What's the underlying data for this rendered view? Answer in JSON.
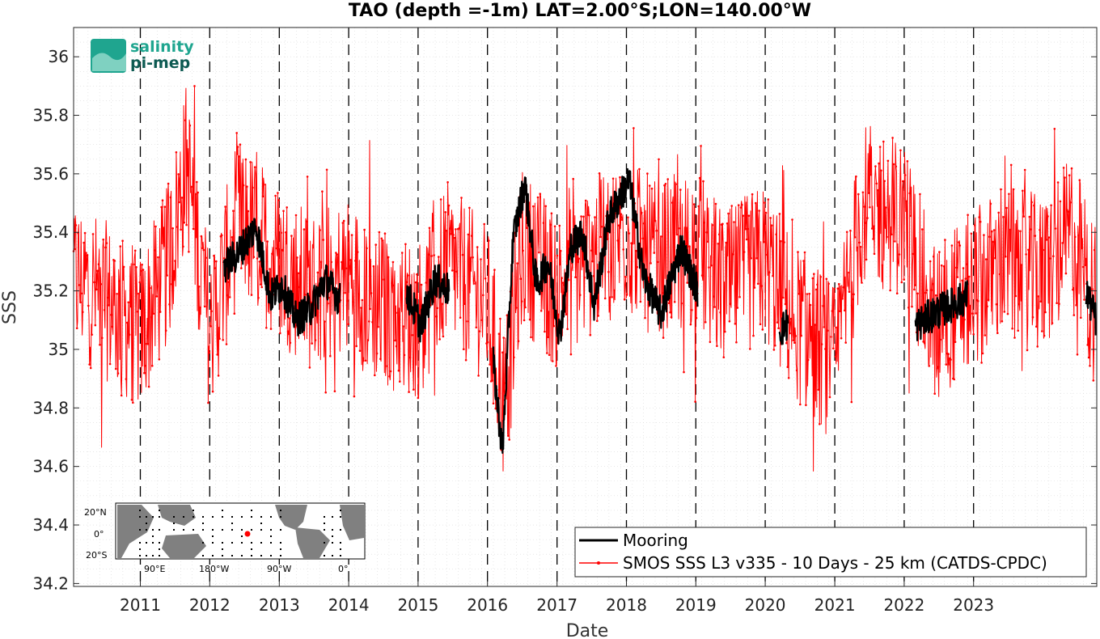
{
  "chart_data": {
    "type": "line",
    "title": "TAO (depth =-1m) LAT=2.00°S;LON=140.00°W",
    "xlabel": "Date",
    "ylabel": "SSS",
    "xlim": [
      "2010-01-15",
      "2024-10-10"
    ],
    "ylim": [
      34.19,
      36.1
    ],
    "xticks": [
      "2011",
      "2012",
      "2013",
      "2014",
      "2015",
      "2016",
      "2017",
      "2018",
      "2019",
      "2020",
      "2021",
      "2022",
      "2023"
    ],
    "yticks": [
      "34.2",
      "34.4",
      "34.6",
      "34.8",
      "35",
      "35.2",
      "35.4",
      "35.6",
      "35.8",
      "36"
    ],
    "vertical_dashed_lines_at_years": [
      2011,
      2012,
      2013,
      2014,
      2015,
      2016,
      2017,
      2018,
      2019,
      2020,
      2021,
      2022,
      2023
    ],
    "grid": true,
    "legend_position": "bottom-right",
    "series": [
      {
        "name": "Mooring",
        "color": "#000000",
        "segments": [
          {
            "x": [
              "2012-03-15",
              "2012-06-01",
              "2012-09-01",
              "2012-11-15",
              "2013-01-15",
              "2013-04-01",
              "2013-06-15",
              "2013-09-01",
              "2013-11-15"
            ],
            "y": [
              35.28,
              35.33,
              35.42,
              35.18,
              35.22,
              35.1,
              35.14,
              35.24,
              35.17
            ]
          },
          {
            "x": [
              "2014-11-01",
              "2015-01-15",
              "2015-04-01",
              "2015-06-15"
            ],
            "y": [
              35.2,
              35.08,
              35.24,
              35.2
            ]
          },
          {
            "x": [
              "2016-02-01",
              "2016-03-20",
              "2016-05-15",
              "2016-07-15",
              "2016-09-15",
              "2016-11-15",
              "2017-01-15",
              "2017-03-15",
              "2017-05-15",
              "2017-07-15",
              "2017-10-01",
              "2018-01-15",
              "2018-04-01",
              "2018-07-01",
              "2018-10-15",
              "2019-01-10"
            ],
            "y": [
              34.95,
              34.65,
              35.38,
              35.57,
              35.22,
              35.3,
              35.05,
              35.35,
              35.4,
              35.15,
              35.45,
              35.58,
              35.25,
              35.12,
              35.35,
              35.2
            ]
          },
          {
            "x": [
              "2020-03-15",
              "2020-05-01"
            ],
            "y": [
              35.06,
              35.09
            ]
          },
          {
            "x": [
              "2022-03-01",
              "2022-06-01",
              "2022-09-01",
              "2022-12-01"
            ],
            "y": [
              35.08,
              35.12,
              35.15,
              35.18
            ]
          },
          {
            "x": [
              "2024-08-15",
              "2024-10-05"
            ],
            "y": [
              35.2,
              35.1
            ]
          }
        ]
      },
      {
        "name": "SMOS SSS L3 v335 - 10 Days - 25 km (CATDS-CPDC)",
        "color": "#ff0000",
        "x": [
          "2010-01-15",
          "2010-06-15",
          "2011-01-01",
          "2011-06-01",
          "2011-09-01",
          "2012-01-01",
          "2012-06-01",
          "2013-01-01",
          "2013-06-01",
          "2014-01-01",
          "2014-06-01",
          "2015-01-01",
          "2015-06-01",
          "2016-01-01",
          "2016-04-01",
          "2016-07-01",
          "2017-01-01",
          "2017-06-01",
          "2018-01-01",
          "2018-06-01",
          "2019-01-01",
          "2019-06-01",
          "2020-01-01",
          "2020-06-01",
          "2021-01-01",
          "2021-06-01",
          "2022-01-01",
          "2022-06-01",
          "2023-01-01",
          "2023-06-01",
          "2024-01-01",
          "2024-06-01",
          "2024-10-05"
        ],
        "y": [
          35.25,
          35.18,
          35.05,
          35.3,
          35.65,
          35.05,
          35.45,
          35.3,
          35.2,
          35.25,
          35.15,
          35.1,
          35.3,
          35.15,
          34.8,
          35.35,
          35.2,
          35.3,
          35.4,
          35.3,
          35.35,
          35.2,
          35.3,
          35.1,
          34.95,
          35.5,
          35.45,
          35.1,
          35.2,
          35.3,
          35.25,
          35.4,
          35.15
        ]
      }
    ],
    "inset_map_labels": {
      "lat": [
        "20°N",
        "0°",
        "20°S"
      ],
      "lon": [
        "90°E",
        "180°W",
        "90°W",
        "0°"
      ]
    }
  },
  "logo": {
    "line1": "salinity",
    "line2": "pi-mep"
  }
}
